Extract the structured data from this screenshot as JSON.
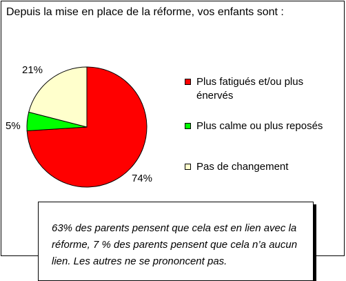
{
  "chart_data": {
    "type": "pie",
    "title": "Depuis la mise en place de la réforme, vos enfants sont :",
    "slices": [
      {
        "label": "Plus fatigués et/ou plus énervés",
        "value": 74,
        "value_label": "74%",
        "color": "#ff0000"
      },
      {
        "label": "Plus calme ou plus reposés",
        "value": 5,
        "value_label": "5%",
        "color": "#00ff00"
      },
      {
        "label": "Pas de changement",
        "value": 21,
        "value_label": "21%",
        "color": "#ffffcc"
      }
    ],
    "legend_placement": "right"
  },
  "note": {
    "text": "63% des parents pensent que cela est en lien avec la réforme, 7 % des parents pensent que cela n’a aucun lien. Les autres ne se prononcent pas."
  }
}
